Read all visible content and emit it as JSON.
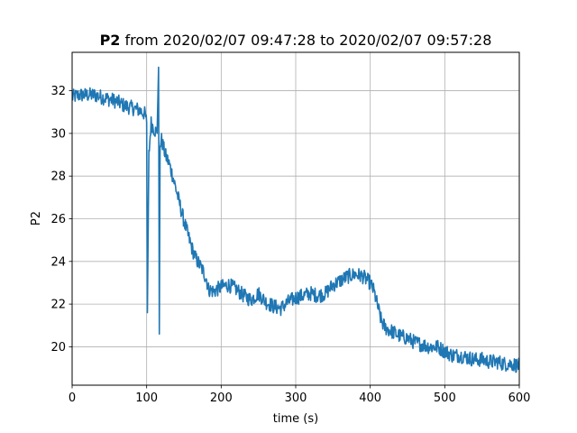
{
  "chart_data": {
    "type": "line",
    "title_bold": "P2",
    "title_rest": " from 2020/02/07 09:47:28 to 2020/02/07 09:57:28",
    "xlabel": "time (s)",
    "ylabel": "P2",
    "xlim": [
      0,
      600
    ],
    "ylim": [
      18.2,
      33.8
    ],
    "xticks": [
      0,
      100,
      200,
      300,
      400,
      500,
      600
    ],
    "yticks": [
      20,
      22,
      24,
      26,
      28,
      30,
      32
    ],
    "grid": true,
    "series": [
      {
        "color": "#1f77b4",
        "noise": 0.35,
        "x": [
          0,
          10,
          20,
          30,
          40,
          50,
          60,
          70,
          80,
          90,
          98,
          100,
          101,
          103,
          106,
          110,
          114,
          116,
          117,
          118,
          120,
          125,
          130,
          135,
          140,
          145,
          150,
          155,
          160,
          165,
          170,
          175,
          180,
          183,
          190,
          200,
          210,
          220,
          230,
          240,
          250,
          260,
          270,
          280,
          290,
          300,
          310,
          320,
          330,
          340,
          350,
          360,
          370,
          380,
          390,
          400,
          405,
          410,
          415,
          420,
          430,
          440,
          450,
          460,
          470,
          480,
          490,
          500,
          510,
          520,
          530,
          540,
          550,
          560,
          570,
          580,
          590,
          600
        ],
        "y": [
          31.7,
          31.8,
          31.8,
          31.8,
          31.7,
          31.6,
          31.5,
          31.3,
          31.2,
          31.1,
          30.9,
          30.5,
          21.6,
          29.0,
          30.5,
          30.2,
          30.0,
          33.1,
          20.6,
          29.5,
          29.7,
          29.0,
          28.6,
          28.0,
          27.3,
          26.6,
          25.9,
          25.3,
          24.7,
          24.2,
          23.9,
          23.6,
          23.2,
          22.7,
          22.6,
          22.8,
          22.9,
          22.7,
          22.4,
          22.2,
          22.5,
          22.1,
          21.9,
          21.8,
          22.1,
          22.3,
          22.4,
          22.5,
          22.4,
          22.5,
          22.9,
          23.1,
          23.3,
          23.4,
          23.3,
          23.0,
          22.6,
          21.9,
          21.2,
          20.9,
          20.7,
          20.5,
          20.4,
          20.2,
          20.1,
          20.0,
          20.0,
          19.8,
          19.6,
          19.6,
          19.5,
          19.4,
          19.4,
          19.3,
          19.3,
          19.2,
          19.2,
          19.1
        ]
      }
    ]
  }
}
